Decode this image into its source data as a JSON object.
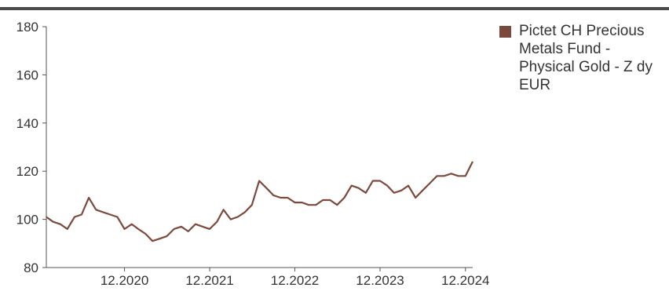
{
  "colors": {
    "series": "#7a4a3e",
    "axis": "#555555",
    "text": "#333333",
    "top_rule": "#4a4a4a"
  },
  "chart_data": {
    "type": "line",
    "grid": false,
    "legend_position": "right",
    "ylim": [
      80,
      180
    ],
    "y_ticks": [
      80,
      100,
      120,
      140,
      160,
      180
    ],
    "y_tick_labels": [
      "80",
      "100",
      "120",
      "140",
      "160",
      "180"
    ],
    "xlim": [
      "2020-01-31",
      "2025-01-31"
    ],
    "x_ticks": [
      "2020-12-31",
      "2021-12-31",
      "2022-12-31",
      "2023-12-31",
      "2024-12-31"
    ],
    "x_tick_labels": [
      "12.2020",
      "12.2021",
      "12.2022",
      "12.2023",
      "12.2024"
    ],
    "series": [
      {
        "name": "Pictet CH Precious Metals Fund - Physical Gold - Z dy EUR",
        "color": "#7a4a3e",
        "x": [
          "2020-01-31",
          "2020-02-29",
          "2020-03-31",
          "2020-04-30",
          "2020-05-31",
          "2020-06-30",
          "2020-07-31",
          "2020-08-31",
          "2020-09-30",
          "2020-10-31",
          "2020-11-30",
          "2020-12-31",
          "2021-01-31",
          "2021-02-28",
          "2021-03-31",
          "2021-04-30",
          "2021-05-31",
          "2021-06-30",
          "2021-07-31",
          "2021-08-31",
          "2021-09-30",
          "2021-10-31",
          "2021-11-30",
          "2021-12-31",
          "2022-01-31",
          "2022-02-28",
          "2022-03-31",
          "2022-04-30",
          "2022-05-31",
          "2022-06-30",
          "2022-07-31",
          "2022-08-31",
          "2022-09-30",
          "2022-10-31",
          "2022-11-30",
          "2022-12-31",
          "2023-01-31",
          "2023-02-28",
          "2023-03-31",
          "2023-04-30",
          "2023-05-31",
          "2023-06-30",
          "2023-07-31",
          "2023-08-31",
          "2023-09-30",
          "2023-10-31",
          "2023-11-30",
          "2023-12-31",
          "2024-01-31",
          "2024-02-29",
          "2024-03-31",
          "2024-04-30",
          "2024-05-31",
          "2024-06-30",
          "2024-07-31",
          "2024-08-31",
          "2024-09-30",
          "2024-10-31",
          "2024-11-30",
          "2024-12-31",
          "2025-01-31"
        ],
        "values": [
          101,
          99,
          98,
          96,
          101,
          102,
          109,
          104,
          103,
          102,
          101,
          96,
          98,
          96,
          94,
          91,
          92,
          93,
          96,
          97,
          95,
          98,
          97,
          96,
          99,
          104,
          100,
          101,
          103,
          106,
          116,
          113,
          110,
          109,
          109,
          107,
          107,
          106,
          106,
          108,
          108,
          106,
          109,
          114,
          113,
          111,
          116,
          116,
          114,
          111,
          112,
          114,
          109,
          112,
          115,
          118,
          118,
          119,
          118,
          118,
          124
        ]
      }
    ]
  }
}
